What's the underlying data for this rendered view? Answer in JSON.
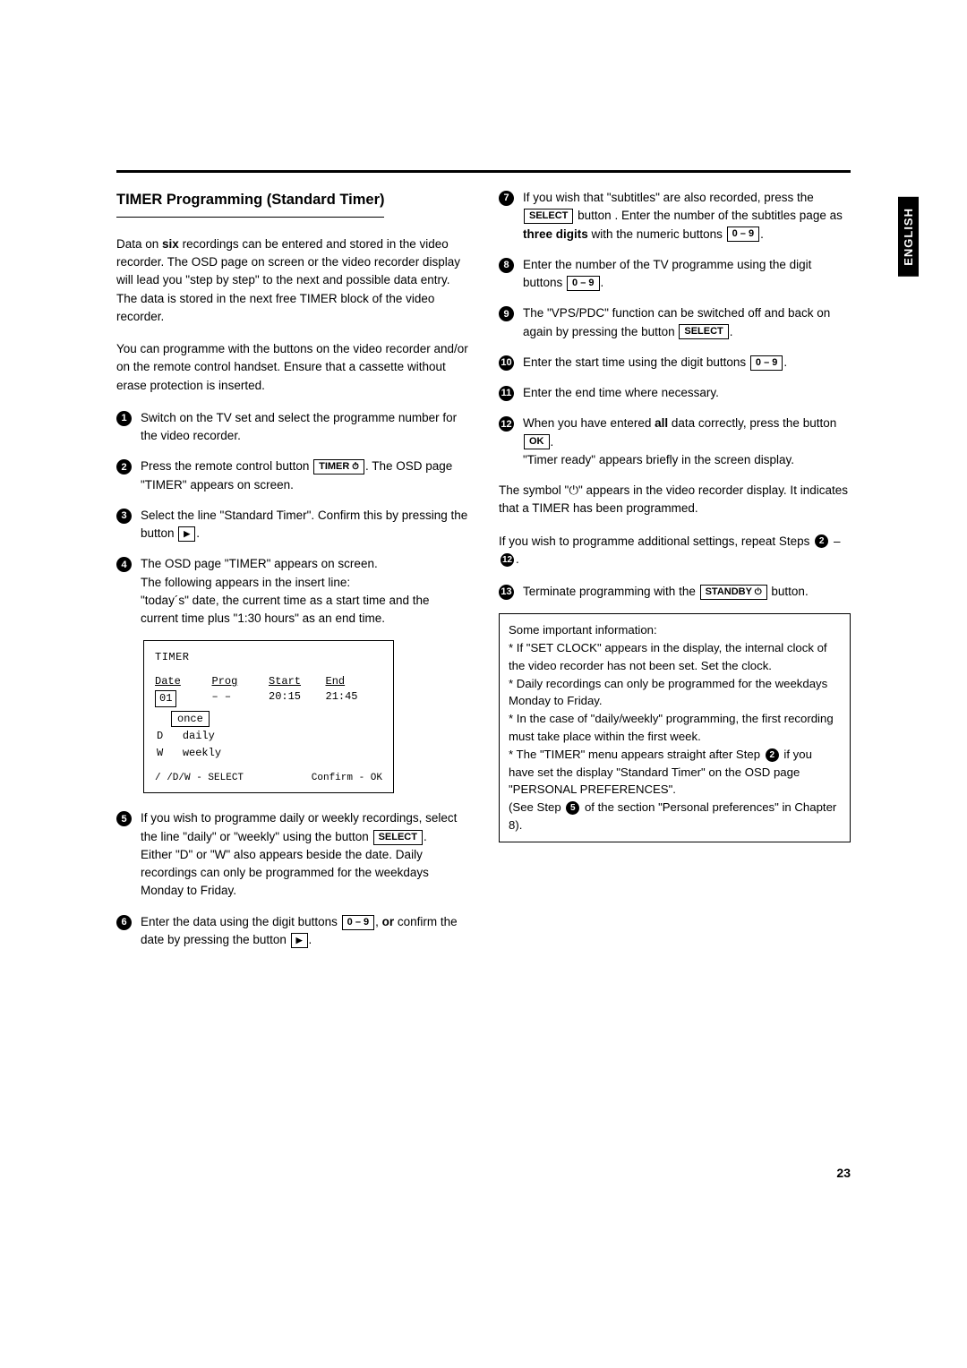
{
  "sideTab": "ENGLISH",
  "pageNumber": "23",
  "title": "TIMER Programming (Standard Timer)",
  "intro1": "Data on ",
  "intro1b": "six",
  "intro1c": " recordings can be entered and stored in the video recorder. The OSD page on screen or the video recorder display will lead you \"step by step\" to the next and possible data entry.",
  "intro2": "The data is stored in the next free TIMER block of the video recorder.",
  "intro3": "You can programme with the buttons on the video recorder and/or on the remote control handset. Ensure that a cassette without erase protection is inserted.",
  "s1": "Switch on the TV set and select the programme number for the video recorder.",
  "s2a": "Press the remote control button ",
  "s2b": ". The OSD page \"TIMER\" appears on screen.",
  "s3a": "Select the line \"Standard Timer\". Confirm this by pressing the button ",
  "s3b": ".",
  "s4a": "The OSD page \"TIMER\" appears on screen.",
  "s4b": "The following appears in the insert line:",
  "s4c": "\"today´s\" date, the current time as a start time and the current time plus \"1:30 hours\" as an end time.",
  "osd": {
    "title": "TIMER",
    "hDate": "Date",
    "hProg": "Prog",
    "hStart": "Start",
    "hEnd": "End",
    "vDate": "01",
    "vProg": "– –",
    "vStart": "20:15",
    "vEnd": "21:45",
    "once": "once",
    "d": "D",
    "daily": "daily",
    "w": "W",
    "weekly": "weekly",
    "footL": "/ /D/W - SELECT",
    "footR": "Confirm - OK"
  },
  "s5a": "If you wish to programme daily or weekly recordings, select the line \"daily\" or \"weekly\" using the button ",
  "s5b": ".",
  "s5c": "Either \"D\" or \"W\" also appears beside the date. Daily recordings can only be programmed for the weekdays Monday to Friday.",
  "s6a": "Enter the data using the digit buttons ",
  "s6b": ", ",
  "s6bb": "or",
  "s6c": " confirm the date by pressing the button ",
  "s6d": ".",
  "s7a": "If you wish that \"subtitles\" are also recorded, press the ",
  "s7b": " button . Enter the number of the subtitles page as ",
  "s7bb": "three digits",
  "s7c": " with the numeric buttons ",
  "s7d": ".",
  "s8a": "Enter the number of the TV programme using the digit buttons ",
  "s8b": ".",
  "s9a": "The \"VPS/PDC\" function can be switched off and back on again by pressing the button ",
  "s9b": ".",
  "s10a": "Enter the start time using the digit buttons ",
  "s10b": ".",
  "s11": "Enter the end time where necessary.",
  "s12a": "When you have entered ",
  "s12ab": "all",
  "s12b": " data correctly, press the button ",
  "s12c": ".",
  "s12d": "\"Timer ready\" appears briefly in the screen display.",
  "sym1": "The symbol \"",
  "sym2": "\" appears in the video recorder display. It indicates that a TIMER has been programmed.",
  "repeat1": "If you wish to programme additional settings, repeat Steps ",
  "repeat2": " – ",
  "repeat3": ".",
  "s13a": "Terminate programming with the ",
  "s13b": " button.",
  "noteTitle": "Some important information:",
  "note1": "* If \"SET  CLOCK\" appears in the display, the internal clock of the video recorder has not been set. Set the clock.",
  "note2": "* Daily recordings can only be programmed for the weekdays Monday to Friday.",
  "note3": "* In the case of \"daily/weekly\" programming, the first recording must take place within the first week.",
  "note4a": "* The \"TIMER\" menu appears straight after Step ",
  "note4b": " if you have set the display \"Standard Timer\" on the OSD page \"PERSONAL  PREFERENCES\".",
  "note5a": "(See Step ",
  "note5b": " of the section \"Personal preferences\" in Chapter 8).",
  "keys": {
    "timer": "TIMER",
    "select": "SELECT",
    "ok": "OK",
    "standby": "STANDBY",
    "digits": "0 – 9"
  }
}
